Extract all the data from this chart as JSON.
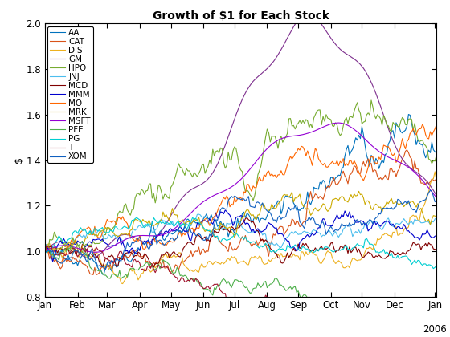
{
  "title": "Growth of $1 for Each Stock",
  "ylabel": "$",
  "ylim": [
    0.8,
    2.0
  ],
  "yticks": [
    0.8,
    1.0,
    1.2,
    1.4,
    1.6,
    1.8,
    2.0
  ],
  "stocks": [
    "AA",
    "CAT",
    "DIS",
    "GM",
    "HPQ",
    "JNJ",
    "MCD",
    "MMM",
    "MO",
    "MRK",
    "MSFT",
    "PFE",
    "PG",
    "T",
    "XOM"
  ],
  "colors": {
    "AA": "#0072BD",
    "CAT": "#D95319",
    "DIS": "#EDB120",
    "GM": "#7E2F8E",
    "HPQ": "#77AC30",
    "JNJ": "#4DBEEE",
    "MCD": "#800000",
    "MMM": "#0000CD",
    "MO": "#FF6600",
    "MRK": "#CCAA00",
    "MSFT": "#9400D3",
    "PFE": "#4DAF4A",
    "PG": "#00CED1",
    "T": "#A2142F",
    "XOM": "#1060C0"
  },
  "month_labels": [
    "Jan",
    "Feb",
    "Mar",
    "Apr",
    "May",
    "Jun",
    "Jul",
    "Aug",
    "Sep",
    "Oct",
    "Nov",
    "Dec",
    "Jan"
  ],
  "month_positions": [
    0,
    21,
    40,
    61,
    81,
    102,
    122,
    143,
    163,
    184,
    204,
    225,
    251
  ],
  "xlabel_2006": "2006",
  "background_color": "#FFFFFF",
  "title_fontsize": 10,
  "axis_fontsize": 9,
  "tick_fontsize": 8.5,
  "legend_fontsize": 7.5,
  "n_days": 252
}
